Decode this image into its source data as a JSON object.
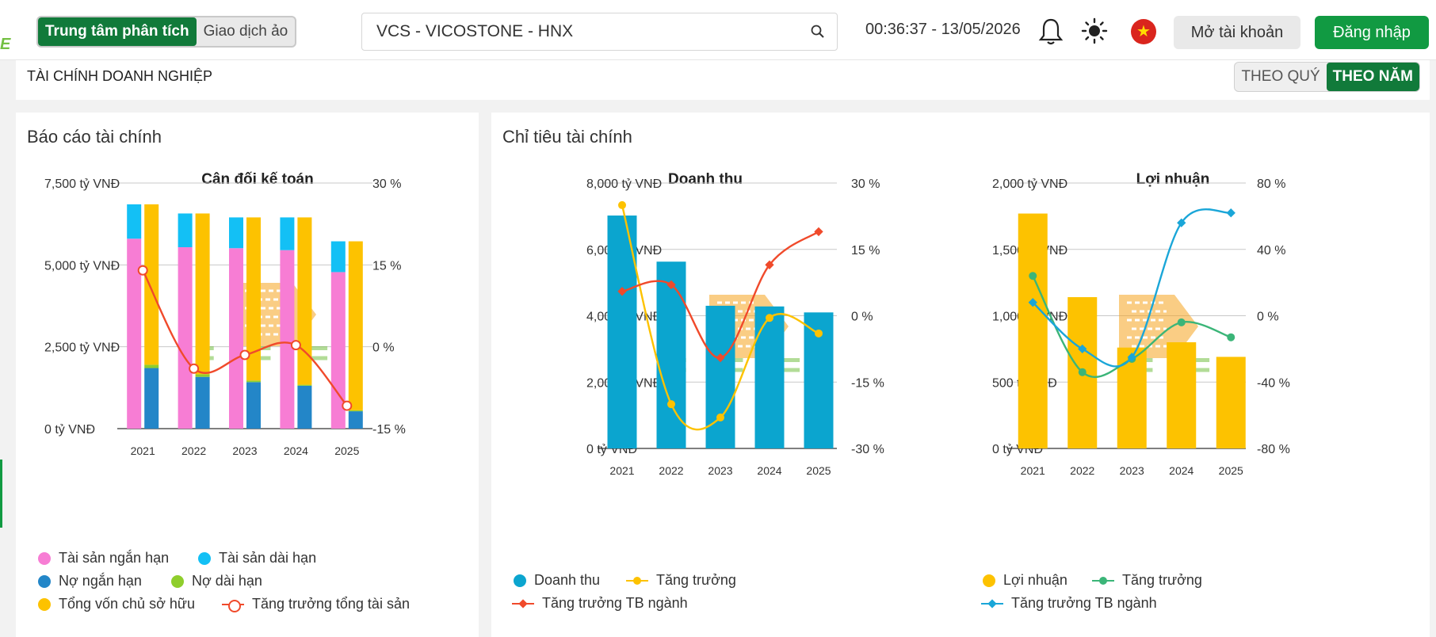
{
  "header": {
    "toggle": [
      "Trung tâm phân tích",
      "Giao dịch ảo"
    ],
    "search_value": "VCS - VICOSTONE - HNX",
    "clock": "00:36:37 - 13/05/2026",
    "open_account": "Mở tài khoản",
    "login": "Đăng nhập",
    "logo_fragment": "E"
  },
  "section": {
    "title": "TÀI CHÍNH DOANH NGHIỆP",
    "period_options": [
      "THEO QUÝ",
      "THEO NĂM"
    ],
    "active_period": "THEO NĂM"
  },
  "left_panel": {
    "title": "Báo cáo tài chính"
  },
  "right_panel": {
    "title": "Chỉ tiêu tài chính"
  },
  "colors": {
    "pink": "#f77dd4",
    "lightblue": "#13c0f5",
    "blue": "#2386c8",
    "lime": "#8fce2c",
    "yellow": "#fdc200",
    "red": "#f04a2b",
    "revenue": "#0ba5cf",
    "green": "#3bb578",
    "cyan": "#1aa6d8",
    "brand": "#117a3a"
  },
  "chart_data": [
    {
      "type": "bar",
      "title": "Cân đối kế toán",
      "categories": [
        "2021",
        "2022",
        "2023",
        "2024",
        "2025"
      ],
      "y_ticks": [
        "0 tỷ VNĐ",
        "2,500 tỷ VNĐ",
        "5,000 tỷ VNĐ",
        "7,500 tỷ VNĐ"
      ],
      "y2_ticks": [
        "-15 %",
        "0 %",
        "15 %",
        "30 %"
      ],
      "ylim": [
        0,
        7500
      ],
      "y2lim": [
        -15,
        30
      ],
      "stacks": [
        {
          "name": "Tài sản ngắn hạn",
          "color": "pink",
          "stack": "assets",
          "values": [
            5800,
            5540,
            5510,
            5450,
            4780
          ]
        },
        {
          "name": "Tài sản dài hạn",
          "color": "lightblue",
          "stack": "assets",
          "values": [
            1050,
            1030,
            940,
            1000,
            940
          ]
        },
        {
          "name": "Nợ ngắn hạn",
          "color": "blue",
          "stack": "capital",
          "values": [
            1850,
            1580,
            1420,
            1310,
            530
          ]
        },
        {
          "name": "Nợ dài hạn",
          "color": "lime",
          "stack": "capital",
          "values": [
            100,
            80,
            50,
            30,
            30
          ]
        },
        {
          "name": "Tổng vốn chủ sở hữu",
          "color": "yellow",
          "stack": "capital",
          "values": [
            4900,
            4910,
            4980,
            5110,
            5160
          ]
        }
      ],
      "line": {
        "name": "Tăng trưởng tổng tài sản",
        "color": "red",
        "values": [
          14,
          -4,
          -1.5,
          0.3,
          -10.8
        ]
      }
    },
    {
      "type": "bar",
      "title": "Doanh thu",
      "categories": [
        "2021",
        "2022",
        "2023",
        "2024",
        "2025"
      ],
      "y_ticks": [
        "0 tỷ VNĐ",
        "2,000 tỷ VNĐ",
        "4,000 tỷ VNĐ",
        "6,000 tỷ VNĐ",
        "8,000 tỷ VNĐ"
      ],
      "y2_ticks": [
        "-30 %",
        "-15 %",
        "0 %",
        "15 %",
        "30 %"
      ],
      "ylim": [
        0,
        8000
      ],
      "y2lim": [
        -30,
        30
      ],
      "bars": {
        "name": "Doanh thu",
        "color": "revenue",
        "values": [
          7020,
          5630,
          4300,
          4280,
          4100
        ]
      },
      "lines": [
        {
          "name": "Tăng trưởng",
          "color": "yellow",
          "marker": "dot",
          "values": [
            25,
            -20,
            -23,
            -0.5,
            -4
          ]
        },
        {
          "name": "Tăng trưởng TB ngành",
          "color": "red",
          "marker": "diamond",
          "values": [
            5.5,
            7,
            -9.5,
            11.5,
            19
          ]
        }
      ]
    },
    {
      "type": "bar",
      "title": "Lợi nhuận",
      "categories": [
        "2021",
        "2022",
        "2023",
        "2024",
        "2025"
      ],
      "y_ticks": [
        "0 tỷ VNĐ",
        "500 tỷ VNĐ",
        "1,000 tỷ VNĐ",
        "1,500 tỷ VNĐ",
        "2,000 tỷ VNĐ"
      ],
      "y2_ticks": [
        "-80 %",
        "-40 %",
        "0 %",
        "40 %",
        "80 %"
      ],
      "ylim": [
        0,
        2000
      ],
      "y2lim": [
        -80,
        80
      ],
      "bars": {
        "name": "Lợi nhuận",
        "color": "yellow",
        "values": [
          1770,
          1140,
          760,
          800,
          690
        ]
      },
      "lines": [
        {
          "name": "Tăng trưởng",
          "color": "green",
          "marker": "dot",
          "values": [
            24,
            -34,
            -26,
            -4,
            -13
          ]
        },
        {
          "name": "Tăng trưởng TB ngành",
          "color": "cyan",
          "marker": "diamond",
          "values": [
            8,
            -20,
            -25,
            56,
            62
          ]
        }
      ]
    }
  ]
}
